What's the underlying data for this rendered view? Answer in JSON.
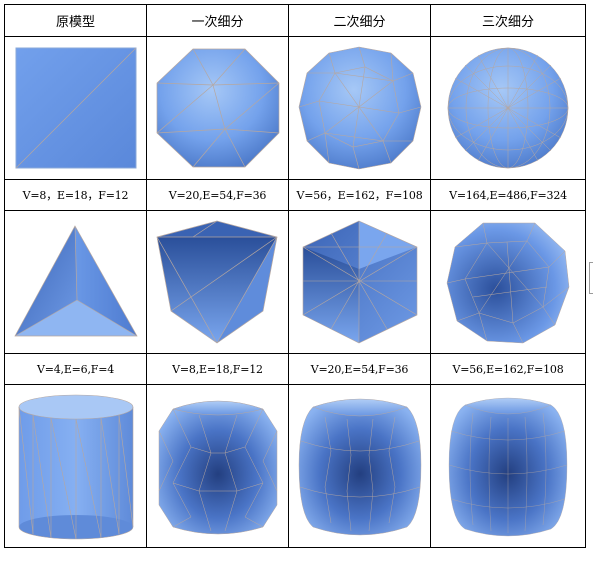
{
  "headers": [
    "原模型",
    "一次细分",
    "二次细分",
    "三次细分"
  ],
  "rows": [
    {
      "shapes": [
        "cube-model-image",
        "cube-subdivision-1-image",
        "cube-subdivision-2-image",
        "cube-subdivision-3-image"
      ],
      "captions": [
        "V=8，E=18，F=12",
        "V=20,E=54,F=36",
        "V=56，E=162，F=108",
        "V=164,E=486,F=324"
      ]
    },
    {
      "shapes": [
        "tetrahedron-model-image",
        "tetrahedron-subdivision-1-image",
        "tetrahedron-subdivision-2-image",
        "tetrahedron-subdivision-3-image"
      ],
      "captions": [
        "V=4,E=6,F=4",
        "V=8,E=18,F=12",
        "V=20,E=54,F=36",
        "V=56,E=162,F=108"
      ]
    },
    {
      "shapes": [
        "cylinder-model-image",
        "cylinder-subdivision-1-image",
        "cylinder-subdivision-2-image",
        "cylinder-subdivision-3-image"
      ],
      "captions": []
    }
  ],
  "colors": {
    "mesh_fill": "#6f9be8",
    "mesh_dark": "#1f3f8a",
    "mesh_light": "#9cc0f4",
    "wire": "#b6a7a0"
  }
}
